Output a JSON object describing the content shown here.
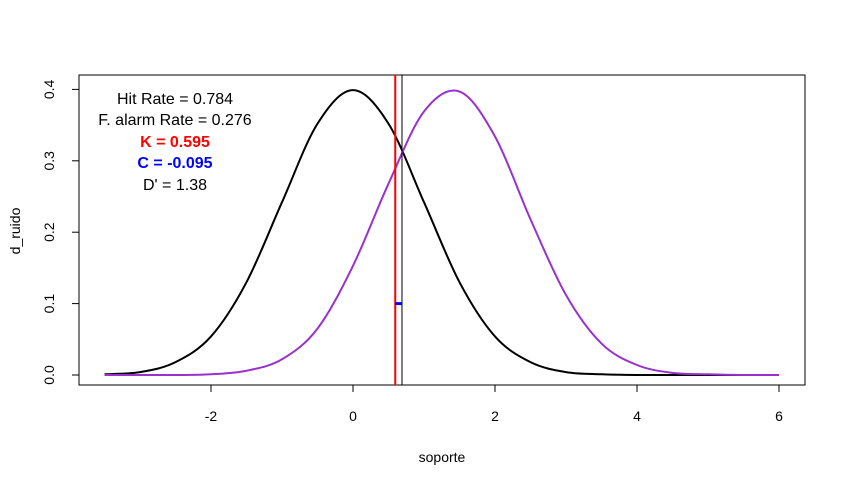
{
  "chart_data": {
    "type": "line",
    "xlabel": "soporte",
    "ylabel": "d_ruido",
    "xlim": [
      -3.5,
      6
    ],
    "ylim": [
      0,
      0.4
    ],
    "xticks": [
      "-2",
      "0",
      "2",
      "4",
      "6"
    ],
    "yticks": [
      "0.0",
      "0.1",
      "0.2",
      "0.3",
      "0.4"
    ],
    "grid": false,
    "series": [
      {
        "color": "#000000",
        "x": [
          -3.5,
          -3.0,
          -2.5,
          -2.0,
          -1.5,
          -1.0,
          -0.5,
          0.0,
          0.5,
          1.0,
          1.5,
          2.0,
          2.5,
          3.0,
          3.5,
          4.0,
          4.5,
          5.0,
          5.5,
          6.0
        ],
        "y": [
          0.001,
          0.004,
          0.018,
          0.054,
          0.13,
          0.242,
          0.352,
          0.399,
          0.352,
          0.242,
          0.13,
          0.054,
          0.018,
          0.004,
          0.001,
          0.0,
          0.0,
          0.0,
          0.0,
          0.0
        ]
      },
      {
        "color": "#9932CC",
        "x": [
          -3.5,
          -3.0,
          -2.5,
          -2.0,
          -1.5,
          -1.0,
          -0.5,
          0.0,
          0.5,
          1.0,
          1.5,
          2.0,
          2.5,
          3.0,
          3.5,
          4.0,
          4.5,
          5.0,
          5.5,
          6.0
        ],
        "y": [
          0.0,
          0.0,
          0.0,
          0.001,
          0.006,
          0.022,
          0.065,
          0.153,
          0.268,
          0.369,
          0.397,
          0.334,
          0.218,
          0.112,
          0.044,
          0.014,
          0.003,
          0.001,
          0.0,
          0.0
        ]
      }
    ],
    "vlines": [
      {
        "x": 0.595,
        "color": "#ff0000"
      },
      {
        "x": 0.69,
        "color": "#000000"
      }
    ],
    "segment": {
      "x": [
        0.595,
        0.69
      ],
      "y": 0.1,
      "color": "#0000ff"
    },
    "annotations": [
      {
        "label": "Hit Rate = ",
        "value": "0.784",
        "color": "#000000",
        "bold": false
      },
      {
        "label": "F. alarm Rate = ",
        "value": "0.276",
        "color": "#000000",
        "bold": false
      },
      {
        "label": "K = ",
        "value": "0.595",
        "color": "#ff0000",
        "bold": true
      },
      {
        "label": "C = ",
        "value": "-0.095",
        "color": "#0000ff",
        "bold": true
      },
      {
        "label": "D' = ",
        "value": "1.38",
        "color": "#000000",
        "bold": false
      }
    ]
  }
}
